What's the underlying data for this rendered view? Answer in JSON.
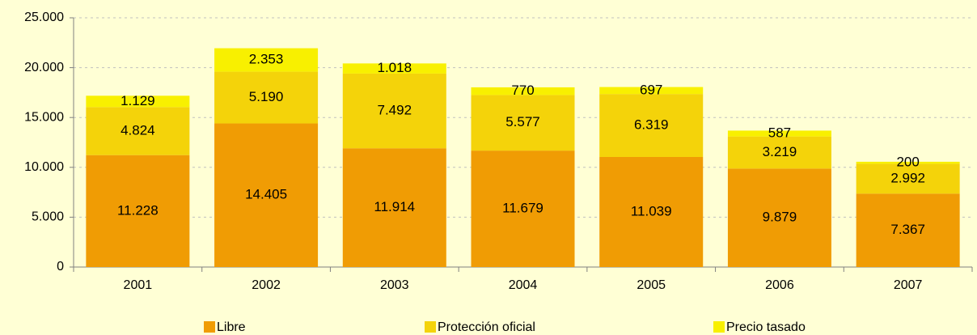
{
  "chart_data": {
    "type": "stacked_bar",
    "categories": [
      "2001",
      "2002",
      "2003",
      "2004",
      "2005",
      "2006",
      "2007"
    ],
    "series": [
      {
        "name": "Libre",
        "color": "#f09c04",
        "values": [
          11228,
          14405,
          11914,
          11679,
          11039,
          9879,
          7367
        ],
        "value_labels": [
          "11.228",
          "14.405",
          "11.914",
          "11.679",
          "11.039",
          "9.879",
          "7.367"
        ]
      },
      {
        "name": "Protección oficial",
        "color": "#f4d30a",
        "values": [
          4824,
          5190,
          7492,
          5577,
          6319,
          3219,
          2992
        ],
        "value_labels": [
          "4.824",
          "5.190",
          "7.492",
          "5.577",
          "6.319",
          "3.219",
          "2.992"
        ]
      },
      {
        "name": "Precio tasado",
        "color": "#f8f000",
        "values": [
          1129,
          2353,
          1018,
          770,
          697,
          587,
          200
        ],
        "value_labels": [
          "1.129",
          "2.353",
          "1.018",
          "770",
          "697",
          "587",
          "200"
        ]
      }
    ],
    "ylim": [
      0,
      25000
    ],
    "yticks": [
      0,
      {
        "value": 5000,
        "label": "5.000"
      },
      {
        "value": 10000,
        "label": "10.000"
      },
      {
        "value": 15000,
        "label": "15.000"
      },
      {
        "value": 20000,
        "label": "20.000"
      },
      {
        "value": 25000,
        "label": "25.000"
      }
    ],
    "grid": true,
    "legend": "bottom"
  }
}
